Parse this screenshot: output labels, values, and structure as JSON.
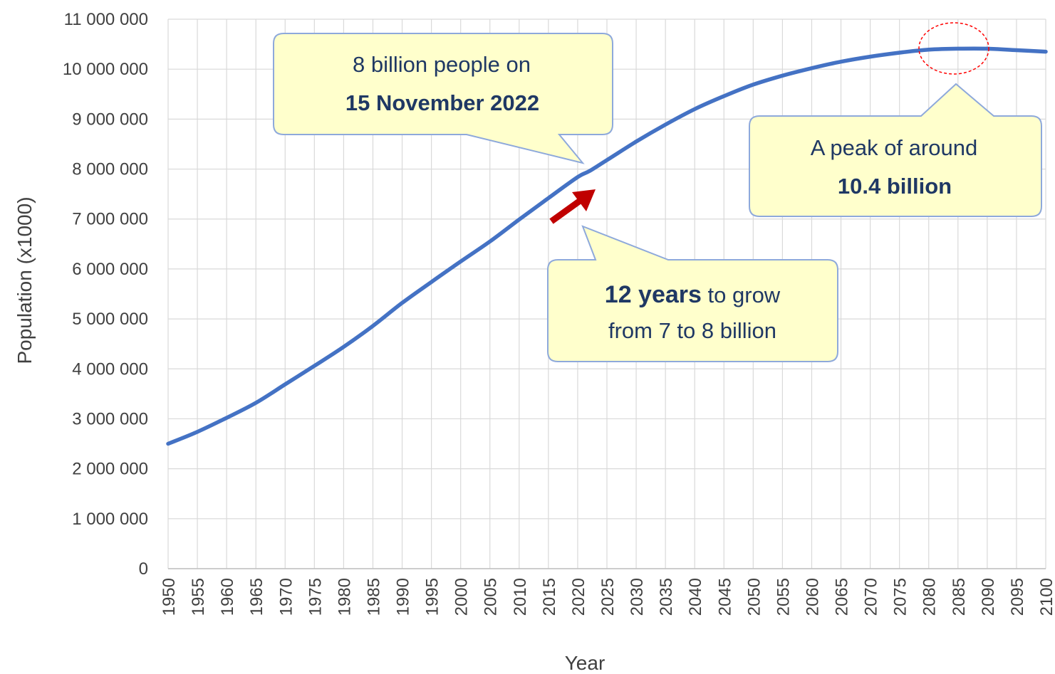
{
  "chart_data": {
    "type": "line",
    "title": "",
    "xlabel": "Year",
    "ylabel": "Population (x1000)",
    "xlim": [
      1950,
      2100
    ],
    "ylim": [
      0,
      11000000
    ],
    "x_ticks": [
      "1950",
      "1955",
      "1960",
      "1965",
      "1970",
      "1975",
      "1980",
      "1985",
      "1990",
      "1995",
      "2000",
      "2005",
      "2010",
      "2015",
      "2020",
      "2025",
      "2030",
      "2035",
      "2040",
      "2045",
      "2050",
      "2055",
      "2060",
      "2065",
      "2070",
      "2075",
      "2080",
      "2085",
      "2090",
      "2095",
      "2100"
    ],
    "y_ticks": [
      "0",
      "1 000 000",
      "2 000 000",
      "3 000 000",
      "4 000 000",
      "5 000 000",
      "6 000 000",
      "7 000 000",
      "8 000 000",
      "9 000 000",
      "10 000 000",
      "11 000 000"
    ],
    "grid": true,
    "line_color": "#4472C4",
    "series": [
      {
        "x": [
          1950,
          1955,
          1960,
          1965,
          1970,
          1975,
          1980,
          1985,
          1990,
          1995,
          2000,
          2005,
          2010,
          2015,
          2020,
          2022,
          2025,
          2030,
          2035,
          2040,
          2045,
          2050,
          2055,
          2060,
          2065,
          2070,
          2075,
          2080,
          2085,
          2090,
          2095,
          2100
        ],
        "values": [
          2500000,
          2740000,
          3020000,
          3320000,
          3690000,
          4060000,
          4440000,
          4860000,
          5320000,
          5740000,
          6150000,
          6550000,
          6990000,
          7420000,
          7840000,
          7960000,
          8180000,
          8550000,
          8890000,
          9200000,
          9460000,
          9690000,
          9870000,
          10020000,
          10150000,
          10250000,
          10330000,
          10390000,
          10410000,
          10410000,
          10380000,
          10350000
        ]
      }
    ],
    "annotations": [
      {
        "line1": "8 billion people on",
        "line2": "15 November 2022"
      },
      {
        "line1": "A peak of around",
        "line2": "10.4 billion"
      },
      {
        "line1_bold": "12 years",
        "line1_rest": " to grow",
        "line2": "from 7 to 8 billion"
      }
    ],
    "colors": {
      "callout_fill": "#FFFFCC",
      "callout_border": "#8EA9DB",
      "callout_text": "#1F3864",
      "arrow": "#C00000",
      "peak_marker": "#FF0000",
      "grid": "#D9D9D9"
    }
  }
}
